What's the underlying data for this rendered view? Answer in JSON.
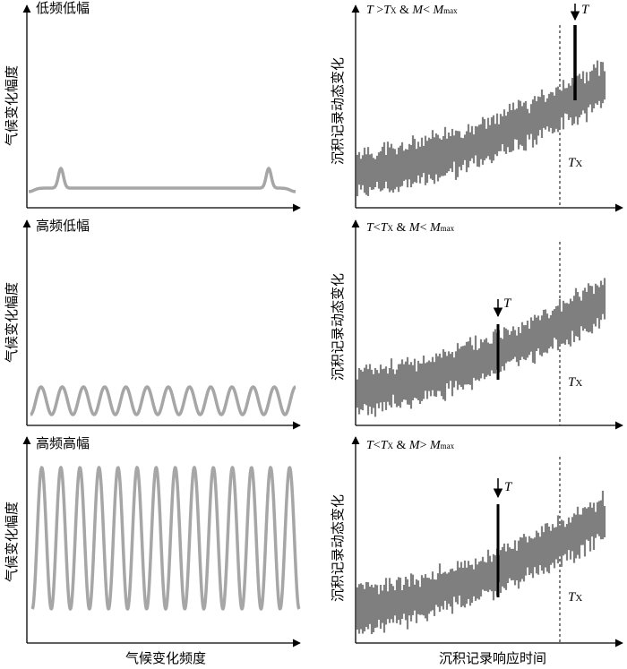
{
  "left_panels": [
    {
      "title": "低频低幅",
      "ylabel": "气候变化幅度"
    },
    {
      "title": "高频低幅",
      "ylabel": "气候变化幅度"
    },
    {
      "title": "高频高幅",
      "ylabel": "气候变化幅度"
    }
  ],
  "left_xlabel": "气候变化频度",
  "right_panels": [
    {
      "ylabel": "沉积记录动态变化",
      "condition": {
        "T": "T",
        "op1": " >",
        "Tx": "T",
        "x_sub": "X",
        "amp": " & ",
        "M": "M",
        "op2": "< ",
        "Mmax": "M",
        "max_sub": "max"
      },
      "marker": "T",
      "tx_label": "T",
      "tx_sub": "X"
    },
    {
      "ylabel": "沉积记录动态变化",
      "condition": {
        "T": "T",
        "op1": "<",
        "Tx": "T",
        "x_sub": "X",
        "amp": " & ",
        "M": "M",
        "op2": "< ",
        "Mmax": "M",
        "max_sub": "max"
      },
      "marker": "T",
      "tx_label": "T",
      "tx_sub": "X"
    },
    {
      "ylabel": "沉积记录动态变化",
      "condition": {
        "T": "T",
        "op1": "<",
        "Tx": "T",
        "x_sub": "X",
        "amp": " & ",
        "M": "M",
        "op2": "> ",
        "Mmax": "M",
        "max_sub": "max"
      },
      "marker": "T",
      "tx_label": "T",
      "tx_sub": "X"
    }
  ],
  "right_xlabel": "沉积记录响应时间",
  "colors": {
    "curve": "#a6a6a6",
    "record": "#7f7f7f",
    "axis": "#000000"
  }
}
